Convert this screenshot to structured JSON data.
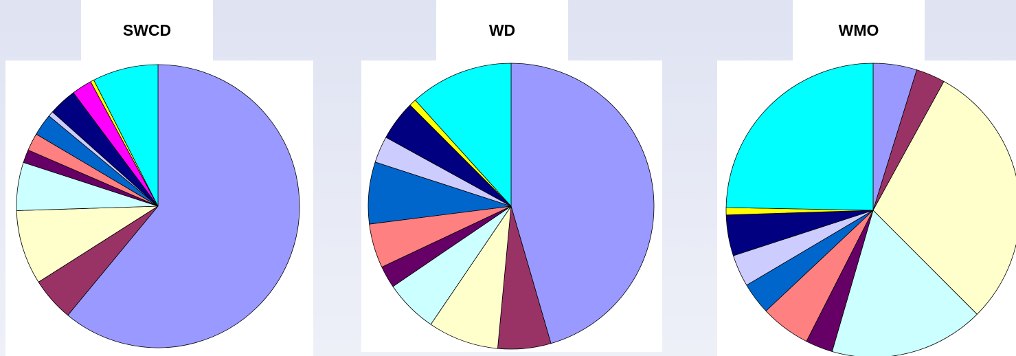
{
  "chart_data": [
    {
      "type": "pie",
      "title": "SWCD",
      "start_angle_deg": 0,
      "direction": "clockwise",
      "slices": [
        {
          "value": 61.0,
          "color": "#9999ff"
        },
        {
          "value": 5.0,
          "color": "#993366"
        },
        {
          "value": 8.5,
          "color": "#ffffcc"
        },
        {
          "value": 5.5,
          "color": "#ccffff"
        },
        {
          "value": 1.5,
          "color": "#660066"
        },
        {
          "value": 2.0,
          "color": "#ff8080"
        },
        {
          "value": 2.5,
          "color": "#0066cc"
        },
        {
          "value": 0.6,
          "color": "#ccccff"
        },
        {
          "value": 3.2,
          "color": "#000080"
        },
        {
          "value": 2.3,
          "color": "#ff00ff"
        },
        {
          "value": 0.4,
          "color": "#ffff00"
        },
        {
          "value": 7.5,
          "color": "#00ffff"
        }
      ]
    },
    {
      "type": "pie",
      "title": "WD",
      "start_angle_deg": 0,
      "direction": "clockwise",
      "slices": [
        {
          "value": 45.5,
          "color": "#9999ff"
        },
        {
          "value": 6.0,
          "color": "#993366"
        },
        {
          "value": 8.0,
          "color": "#ffffcc"
        },
        {
          "value": 6.0,
          "color": "#ccffff"
        },
        {
          "value": 2.5,
          "color": "#660066"
        },
        {
          "value": 5.0,
          "color": "#ff8080"
        },
        {
          "value": 7.0,
          "color": "#0066cc"
        },
        {
          "value": 3.0,
          "color": "#ccccff"
        },
        {
          "value": 4.5,
          "color": "#000080"
        },
        {
          "value": 0.8,
          "color": "#ffff00"
        },
        {
          "value": 11.7,
          "color": "#00ffff"
        }
      ]
    },
    {
      "type": "pie",
      "title": "WMO",
      "start_angle_deg": 0,
      "direction": "clockwise",
      "slices": [
        {
          "value": 4.8,
          "color": "#9999ff"
        },
        {
          "value": 3.2,
          "color": "#993366"
        },
        {
          "value": 29.5,
          "color": "#ffffcc"
        },
        {
          "value": 17.0,
          "color": "#ccffff"
        },
        {
          "value": 3.0,
          "color": "#660066"
        },
        {
          "value": 5.5,
          "color": "#ff8080"
        },
        {
          "value": 3.5,
          "color": "#0066cc"
        },
        {
          "value": 3.5,
          "color": "#ccccff"
        },
        {
          "value": 4.5,
          "color": "#000080"
        },
        {
          "value": 0.8,
          "color": "#ffff00"
        },
        {
          "value": 24.7,
          "color": "#00ffff"
        }
      ]
    }
  ]
}
